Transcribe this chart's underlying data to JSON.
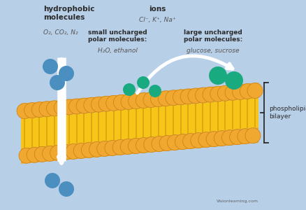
{
  "bg_color": "#b8cfe8",
  "membrane_head_color": "#f0a830",
  "membrane_body_color": "#f5c518",
  "blue_color": "#4a8fc0",
  "teal_color": "#1aaa80",
  "white": "#ffffff",
  "text_dark": "#2a2a2a",
  "text_gray": "#555555",
  "labels": {
    "hydrophobic_title": "hydrophobic\nmolecules",
    "hydrophobic_sub": "O₂, CO₂, N₂",
    "ions_title": "ions",
    "ions_sub": "Cl⁻, K⁺, Na⁺",
    "small_polar_title": "small uncharged\npolar molecules:",
    "small_polar_sub": "H₂O, ethanol",
    "large_polar_title": "large uncharged\npolar molecules:",
    "large_polar_sub": "glucose, sucrose",
    "phospholipid": "phospholipid\nbilayer",
    "watermark": "Visionlearning.com"
  }
}
